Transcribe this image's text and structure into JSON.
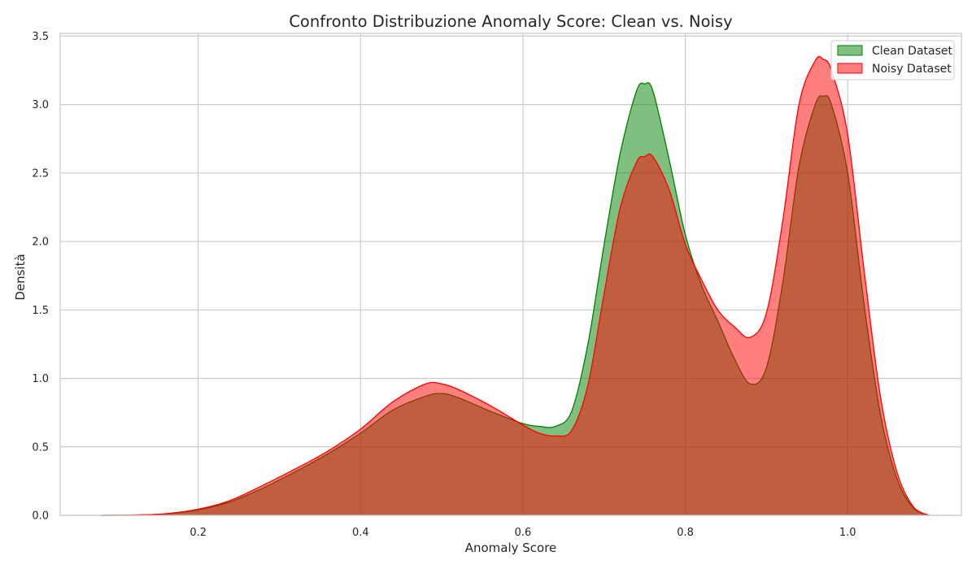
{
  "chart_data": {
    "type": "area",
    "title": "Confronto Distribuzione Anomaly Score: Clean vs. Noisy",
    "xlabel": "Anomaly Score",
    "ylabel": "Densità",
    "xlim": [
      0.03,
      1.14
    ],
    "ylim": [
      0,
      3.52
    ],
    "xticks": [
      0.2,
      0.4,
      0.6,
      0.8,
      1.0
    ],
    "xtick_labels": [
      "0.2",
      "0.4",
      "0.6",
      "0.8",
      "1.0"
    ],
    "yticks": [
      0.0,
      0.5,
      1.0,
      1.5,
      2.0,
      2.5,
      3.0,
      3.5
    ],
    "ytick_labels": [
      "0.0",
      "0.5",
      "1.0",
      "1.5",
      "2.0",
      "2.5",
      "3.0",
      "3.5"
    ],
    "grid": true,
    "legend_position": "top-right",
    "series": [
      {
        "name": "Clean Dataset",
        "color": "#008000",
        "x": [
          0.08,
          0.12,
          0.16,
          0.2,
          0.24,
          0.28,
          0.32,
          0.36,
          0.4,
          0.44,
          0.48,
          0.5,
          0.52,
          0.56,
          0.6,
          0.62,
          0.64,
          0.66,
          0.68,
          0.7,
          0.72,
          0.74,
          0.75,
          0.76,
          0.78,
          0.8,
          0.82,
          0.84,
          0.86,
          0.88,
          0.9,
          0.92,
          0.94,
          0.96,
          0.97,
          0.98,
          1.0,
          1.02,
          1.04,
          1.06,
          1.08,
          1.1
        ],
        "y": [
          0.0,
          0.002,
          0.01,
          0.04,
          0.1,
          0.2,
          0.32,
          0.45,
          0.6,
          0.77,
          0.87,
          0.89,
          0.86,
          0.76,
          0.67,
          0.65,
          0.65,
          0.76,
          1.25,
          1.98,
          2.65,
          3.1,
          3.15,
          3.1,
          2.6,
          2.05,
          1.68,
          1.42,
          1.15,
          0.96,
          1.08,
          1.7,
          2.55,
          3.0,
          3.06,
          3.0,
          2.5,
          1.55,
          0.75,
          0.28,
          0.06,
          0.0
        ]
      },
      {
        "name": "Noisy Dataset",
        "color": "#ff0000",
        "x": [
          0.08,
          0.12,
          0.16,
          0.2,
          0.24,
          0.28,
          0.32,
          0.36,
          0.4,
          0.44,
          0.48,
          0.5,
          0.52,
          0.56,
          0.6,
          0.62,
          0.64,
          0.66,
          0.68,
          0.7,
          0.72,
          0.74,
          0.75,
          0.76,
          0.78,
          0.8,
          0.82,
          0.84,
          0.86,
          0.88,
          0.9,
          0.92,
          0.94,
          0.96,
          0.97,
          0.98,
          1.0,
          1.02,
          1.04,
          1.06,
          1.08,
          1.1
        ],
        "y": [
          0.0,
          0.003,
          0.012,
          0.045,
          0.11,
          0.22,
          0.34,
          0.47,
          0.63,
          0.83,
          0.96,
          0.96,
          0.92,
          0.8,
          0.66,
          0.6,
          0.58,
          0.62,
          0.95,
          1.62,
          2.25,
          2.58,
          2.62,
          2.62,
          2.38,
          1.98,
          1.72,
          1.5,
          1.38,
          1.3,
          1.48,
          2.15,
          3.0,
          3.32,
          3.33,
          3.25,
          2.78,
          1.8,
          0.88,
          0.33,
          0.07,
          0.0
        ]
      }
    ]
  }
}
